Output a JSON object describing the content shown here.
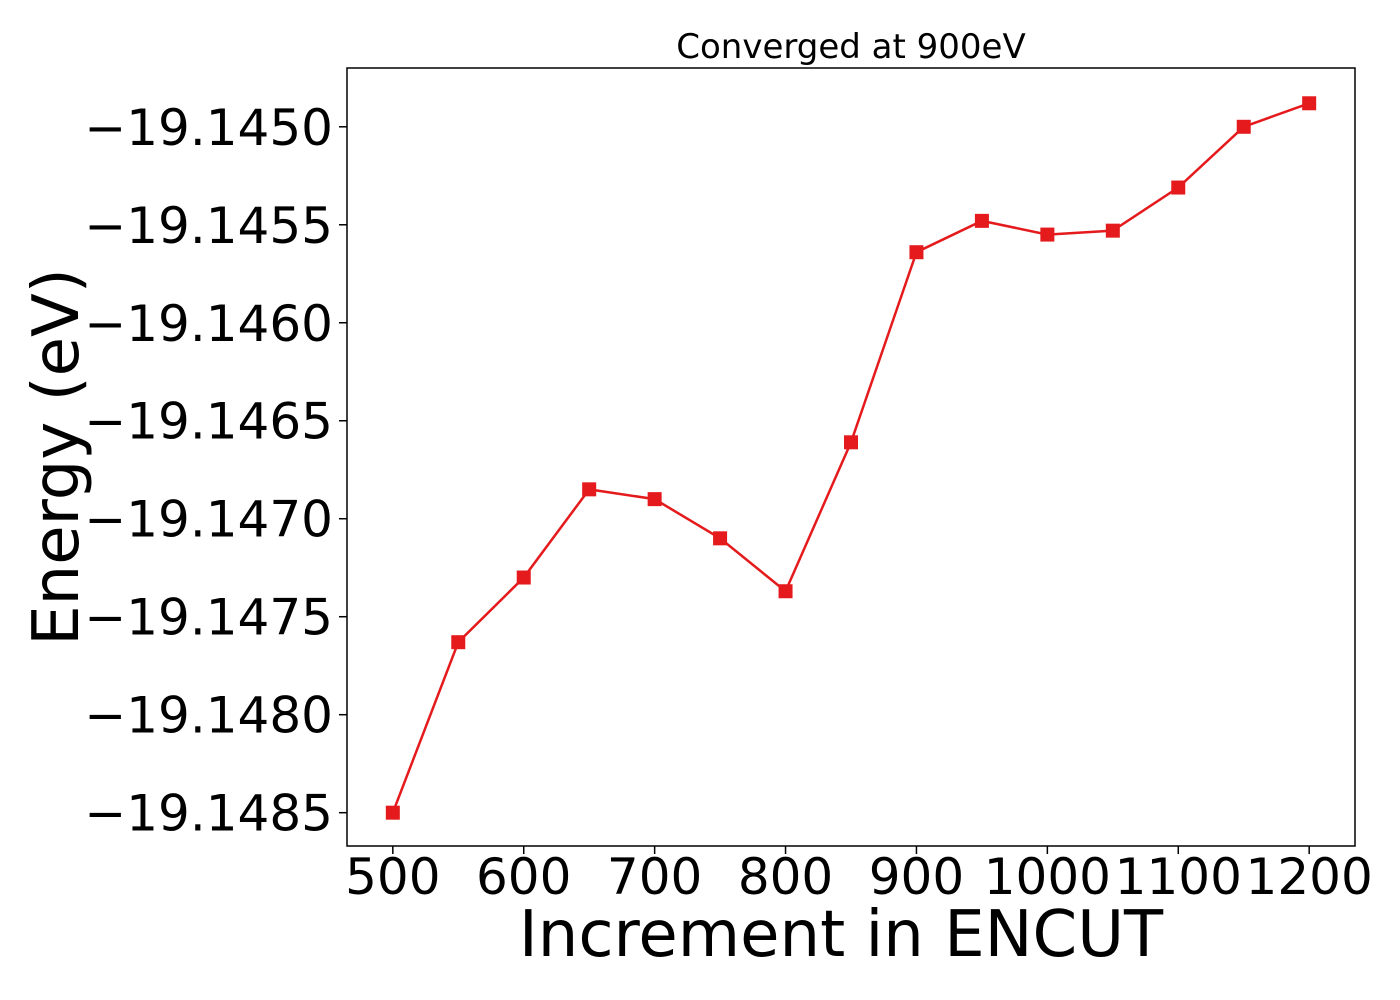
{
  "chart_data": {
    "type": "line",
    "title": "Converged at 900eV",
    "xlabel": "Increment in ENCUT",
    "ylabel": "Energy (eV)",
    "xlim": [
      465,
      1235
    ],
    "ylim": [
      -19.14867,
      -19.1447
    ],
    "xticks": [
      500,
      600,
      700,
      800,
      900,
      1000,
      1100,
      1200
    ],
    "xtick_labels": [
      "500",
      "600",
      "700",
      "800",
      "900",
      "1000",
      "1100",
      "1200"
    ],
    "yticks": [
      -19.145,
      -19.1455,
      -19.146,
      -19.1465,
      -19.147,
      -19.1475,
      -19.148,
      -19.1485
    ],
    "ytick_labels": [
      "−19.1450",
      "−19.1455",
      "−19.1460",
      "−19.1465",
      "−19.1470",
      "−19.1475",
      "−19.1480",
      "−19.1485"
    ],
    "grid": false,
    "series": [
      {
        "color": "#e41a1c",
        "marker": "square",
        "x": [
          500,
          550,
          600,
          650,
          700,
          750,
          800,
          850,
          900,
          950,
          1000,
          1050,
          1100,
          1150,
          1200
        ],
        "y": [
          -19.1485,
          -19.14763,
          -19.1473,
          -19.14685,
          -19.1469,
          -19.1471,
          -19.14737,
          -19.14661,
          -19.14564,
          -19.14548,
          -19.14555,
          -19.14553,
          -19.14531,
          -19.145,
          -19.14488
        ]
      }
    ]
  }
}
